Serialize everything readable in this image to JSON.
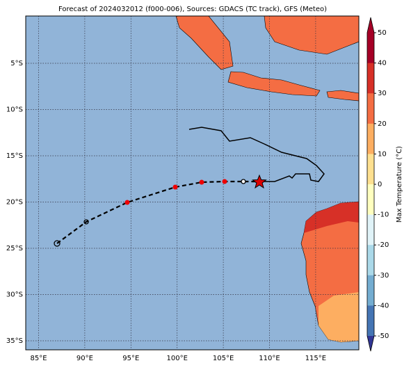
{
  "header": {
    "title": "Forecast of 2024032012 (f000-006), Sources: GDACS (TC track), GFS (Meteo)"
  },
  "map": {
    "lon_labels": [
      "85°E",
      "90°E",
      "95°E",
      "100°E",
      "105°E",
      "110°E",
      "115°E"
    ],
    "lat_labels": [
      "5°S",
      "10°S",
      "15°S",
      "20°S",
      "25°S",
      "30°S",
      "35°S"
    ]
  },
  "colorbar": {
    "label": "Max Temperature (°C)",
    "ticks": [
      50,
      40,
      30,
      20,
      10,
      0,
      -10,
      -20,
      -30,
      -40,
      -50
    ],
    "colors": [
      "#a50026",
      "#d73027",
      "#f46d43",
      "#fdae61",
      "#fee090",
      "#ffffbf",
      "#e0f3f8",
      "#abd9e9",
      "#74add1",
      "#4575b4",
      "#313695"
    ]
  }
}
